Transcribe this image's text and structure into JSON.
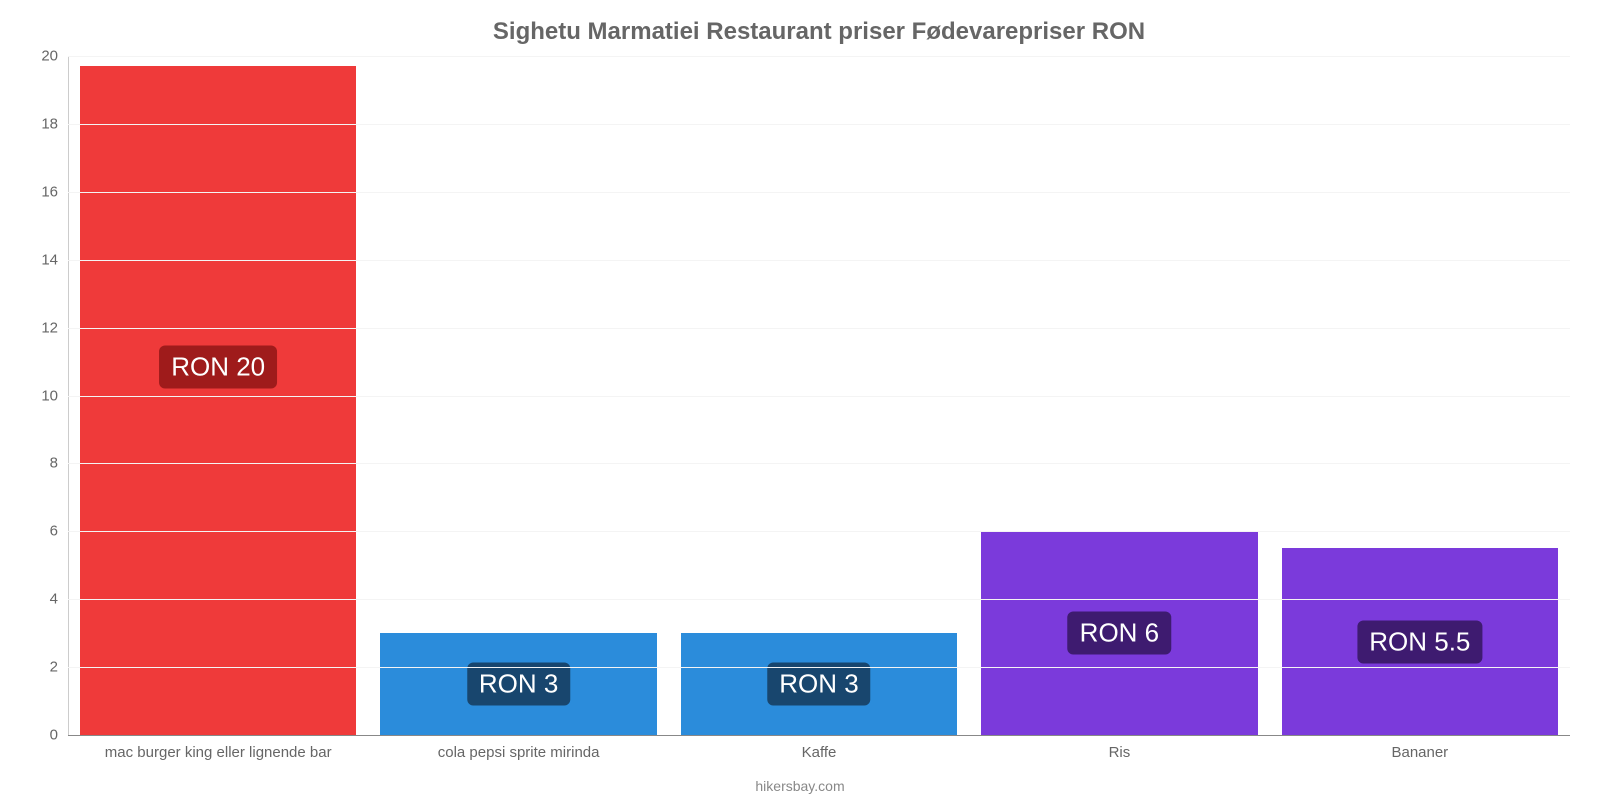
{
  "chart": {
    "type": "bar",
    "title": "Sighetu Marmatiei Restaurant priser Fødevarepriser RON",
    "title_fontsize": 24,
    "title_color": "#666666",
    "background_color": "#ffffff",
    "grid_color": "#f4f4f4",
    "axis_color": "#888888",
    "credit": "hikersbay.com",
    "ylim": [
      0,
      20
    ],
    "ytick_step": 2,
    "yticks": [
      0,
      2,
      4,
      6,
      8,
      10,
      12,
      14,
      16,
      18,
      20
    ],
    "tick_fontsize": 15,
    "tick_color": "#666666",
    "bar_width": 0.92,
    "label_fontsize": 26,
    "label_text_color": "#ffffff",
    "categories": [
      "mac burger king eller lignende bar",
      "cola pepsi sprite mirinda",
      "Kaffe",
      "Ris",
      "Bananer"
    ],
    "values": [
      19.7,
      3,
      3,
      6,
      5.5
    ],
    "value_labels": [
      "RON 20",
      "RON 3",
      "RON 3",
      "RON 6",
      "RON 5.5"
    ],
    "bar_colors": [
      "#ef3a3a",
      "#2b8cdb",
      "#2b8cdb",
      "#7b3adb",
      "#7b3adb"
    ],
    "label_bg_colors": [
      "#9f1b1b",
      "#18466e",
      "#18466e",
      "#3e1b70",
      "#3e1b70"
    ],
    "label_y_offsets_pct": [
      55,
      50,
      50,
      50,
      50
    ]
  }
}
